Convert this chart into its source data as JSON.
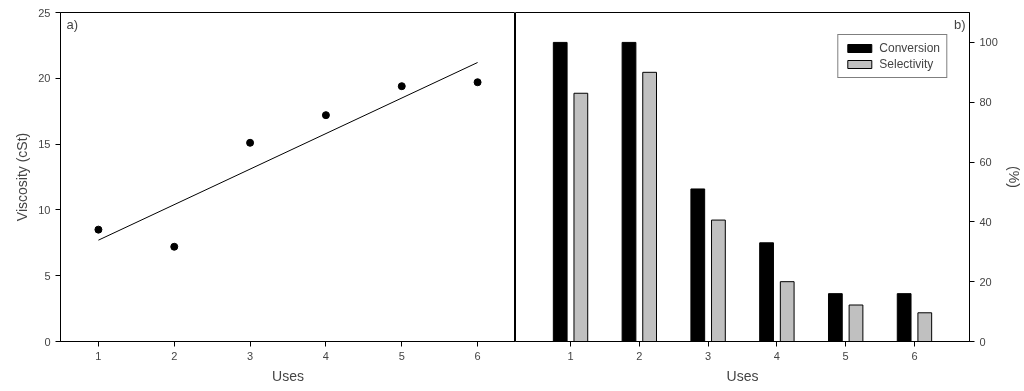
{
  "chart_data": [
    {
      "type": "scatter",
      "xlabel": "Uses",
      "ylabel": "Viscosity (cSt)",
      "annotations": [
        "a)"
      ],
      "marker": "circle",
      "grid": false,
      "xlim": [
        0.5,
        6.5
      ],
      "xticks": [
        1,
        2,
        3,
        4,
        5,
        6
      ],
      "ylim": [
        0,
        25
      ],
      "yticks": [
        0,
        5,
        10,
        15,
        20,
        25
      ],
      "series": [
        {
          "type": "scatter",
          "color": "#000000",
          "x": [
            1,
            2,
            3,
            4,
            5,
            6
          ],
          "values": [
            8.5,
            7.2,
            15.1,
            17.2,
            19.4,
            19.7
          ]
        },
        {
          "type": "line",
          "marker": "none",
          "color": "#000000",
          "x": [
            1,
            6
          ],
          "values": [
            7.7,
            21.2
          ]
        }
      ]
    },
    {
      "type": "bar",
      "xlabel": "Uses",
      "y2label": "(%)",
      "annotations": [
        "b)"
      ],
      "grid": false,
      "legend": "top right",
      "categories": [
        "1",
        "2",
        "3",
        "4",
        "5",
        "6"
      ],
      "y2lim": [
        0,
        110
      ],
      "y2ticks": [
        0,
        20,
        40,
        60,
        80,
        100
      ],
      "series": [
        {
          "name": "Conversion",
          "color": "#000000",
          "axis": "y2",
          "values": [
            100,
            100,
            51,
            33,
            16,
            16
          ]
        },
        {
          "name": "Selectivity",
          "color": "#c0c0c0",
          "axis": "y2",
          "values": [
            83,
            90,
            40.6,
            20,
            12.2,
            9.6
          ]
        }
      ]
    }
  ]
}
